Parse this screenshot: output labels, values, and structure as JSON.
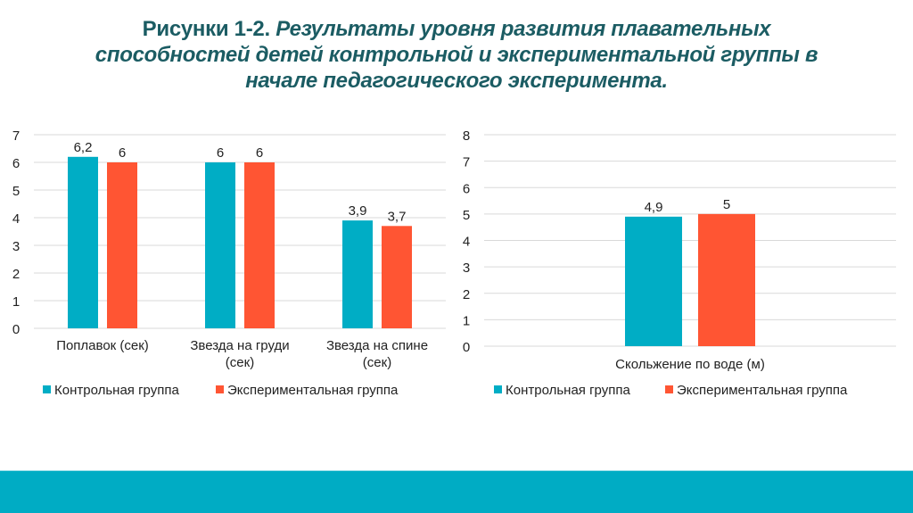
{
  "title": {
    "prefix": "Рисунки 1-2.",
    "line1": "Результаты уровня развития плавательных",
    "line2": "способностей детей контрольной и экспериментальной группы в",
    "line3": "начале педагогического эксперимента."
  },
  "colors": {
    "control": "#00adc5",
    "experimental": "#ff5533",
    "title": "#1b5c63",
    "band": "#00acc4"
  },
  "chart_data": [
    {
      "type": "bar",
      "categories": [
        [
          "Поплавок (сек)"
        ],
        [
          "Звезда на груди",
          "(сек)"
        ],
        [
          "Звезда на спине",
          "(сек)"
        ]
      ],
      "series": [
        {
          "name": "Контрольная группа",
          "values": [
            6.2,
            6,
            3.9
          ],
          "labels": [
            "6,2",
            "6",
            "3,9"
          ]
        },
        {
          "name": "Экспериментальная группа",
          "values": [
            6,
            6,
            3.7
          ],
          "labels": [
            "6",
            "6",
            "3,7"
          ]
        }
      ],
      "ylim": [
        0,
        7
      ],
      "yticks": [
        "0",
        "1",
        "2",
        "3",
        "4",
        "5",
        "6",
        "7"
      ],
      "grid": true,
      "legend": "bottom"
    },
    {
      "type": "bar",
      "categories": [
        [
          "Скольжение по воде (м)"
        ]
      ],
      "series": [
        {
          "name": "Контрольная группа",
          "values": [
            4.9
          ],
          "labels": [
            "4,9"
          ]
        },
        {
          "name": "Экспериментальная группа",
          "values": [
            5
          ],
          "labels": [
            "5"
          ]
        }
      ],
      "ylim": [
        0,
        8
      ],
      "yticks": [
        "0",
        "1",
        "2",
        "3",
        "4",
        "5",
        "6",
        "7",
        "8"
      ],
      "grid": true,
      "legend": "bottom"
    }
  ]
}
